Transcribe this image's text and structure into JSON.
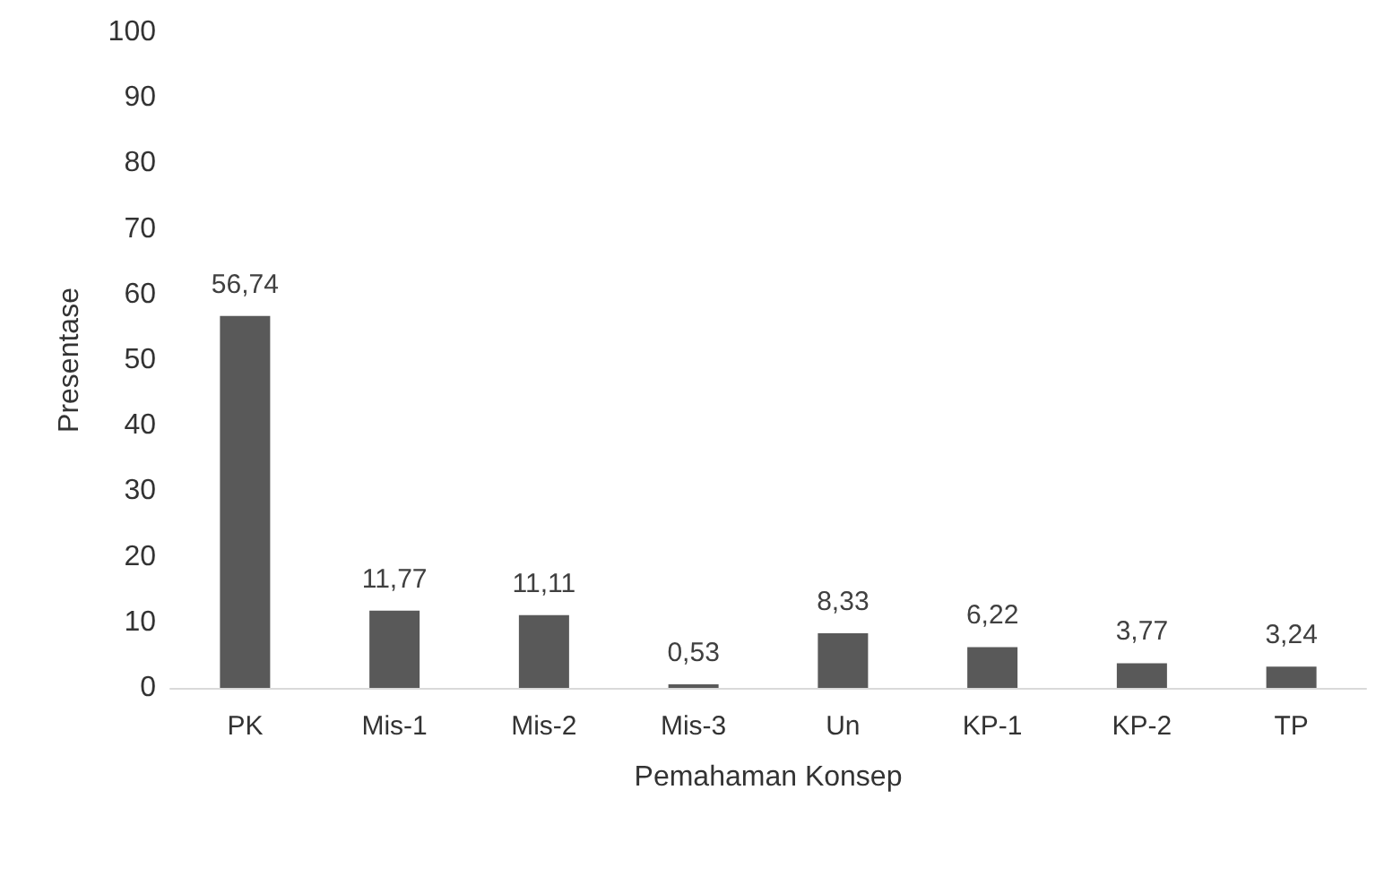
{
  "chart_data": {
    "type": "bar",
    "xlabel": "Pemahaman Konsep",
    "ylabel": "Presentase",
    "categories": [
      "PK",
      "Mis-1",
      "Mis-2",
      "Mis-3",
      "Un",
      "KP-1",
      "KP-2",
      "TP"
    ],
    "values": [
      56.74,
      11.77,
      11.11,
      0.53,
      8.33,
      6.22,
      3.77,
      3.24
    ],
    "value_labels": [
      "56,74",
      "11,77",
      "11,11",
      "0,53",
      "8,33",
      "6,22",
      "3,77",
      "3,24"
    ],
    "color": "#595959",
    "ylim": [
      0,
      100
    ],
    "yticks": [
      0,
      10,
      20,
      30,
      40,
      50,
      60,
      70,
      80,
      90,
      100
    ],
    "grid": false
  }
}
